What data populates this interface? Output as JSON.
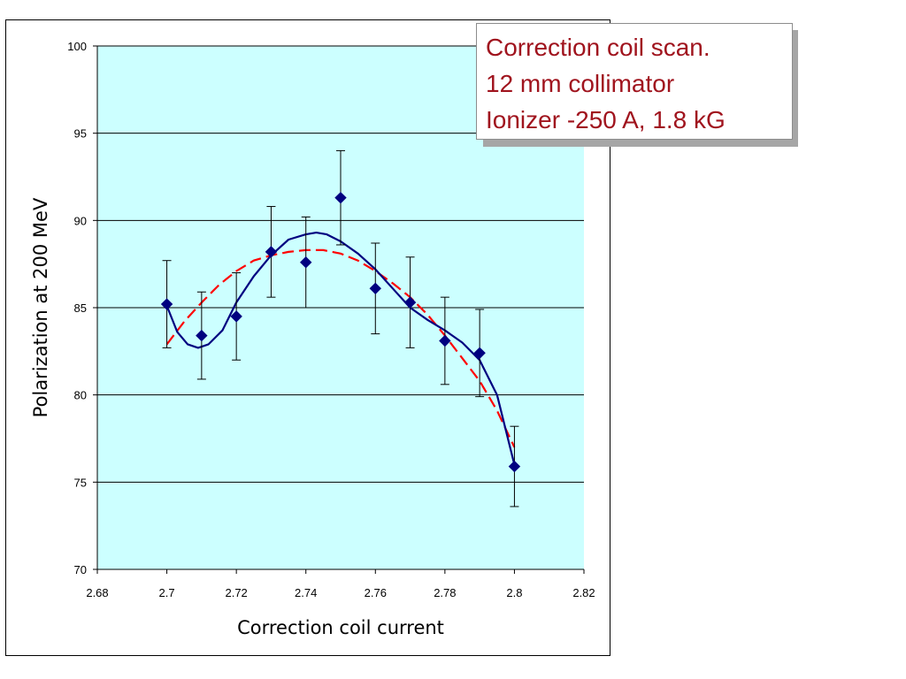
{
  "chart_data": {
    "type": "scatter",
    "xlabel": "Correction coil current",
    "ylabel": "Polarization at 200 MeV",
    "xlim": [
      2.68,
      2.82
    ],
    "ylim": [
      70,
      100
    ],
    "x_ticks": [
      "2.68",
      "2.7",
      "2.72",
      "2.74",
      "2.76",
      "2.78",
      "2.8",
      "2.82"
    ],
    "y_ticks": [
      "70",
      "75",
      "80",
      "85",
      "90",
      "95",
      "100"
    ],
    "grid": "horizontal",
    "plot_background": "#ccffff",
    "series": [
      {
        "type": "scatter",
        "marker": "diamond",
        "color": "#000080",
        "x": [
          2.7,
          2.71,
          2.72,
          2.73,
          2.74,
          2.75,
          2.76,
          2.77,
          2.78,
          2.79,
          2.8
        ],
        "y": [
          85.2,
          83.4,
          84.5,
          88.2,
          87.6,
          91.3,
          86.1,
          85.3,
          83.1,
          82.4,
          75.9
        ],
        "error": [
          2.5,
          2.5,
          2.5,
          2.6,
          2.6,
          2.7,
          2.6,
          2.6,
          2.5,
          2.5,
          2.3
        ]
      },
      {
        "type": "line",
        "style": "solid",
        "color": "#000080",
        "x": [
          2.7,
          2.703,
          2.706,
          2.709,
          2.712,
          2.716,
          2.72,
          2.725,
          2.73,
          2.735,
          2.74,
          2.743,
          2.746,
          2.75,
          2.755,
          2.76,
          2.765,
          2.77,
          2.775,
          2.78,
          2.785,
          2.79,
          2.795,
          2.8
        ],
        "y": [
          85.1,
          83.6,
          82.9,
          82.7,
          82.9,
          83.7,
          85.3,
          86.8,
          88.0,
          88.9,
          89.2,
          89.3,
          89.2,
          88.8,
          88.1,
          87.2,
          86.1,
          85.0,
          84.3,
          83.7,
          83.0,
          82.0,
          80.0,
          76.0
        ]
      },
      {
        "type": "line",
        "style": "dashed",
        "color": "#ff0000",
        "x": [
          2.7,
          2.705,
          2.71,
          2.715,
          2.72,
          2.725,
          2.73,
          2.735,
          2.74,
          2.745,
          2.75,
          2.755,
          2.76,
          2.765,
          2.77,
          2.775,
          2.78,
          2.785,
          2.79,
          2.795,
          2.8
        ],
        "y": [
          82.9,
          84.2,
          85.3,
          86.3,
          87.1,
          87.7,
          88.0,
          88.2,
          88.3,
          88.3,
          88.1,
          87.7,
          87.1,
          86.4,
          85.6,
          84.6,
          83.4,
          82.1,
          80.8,
          79.1,
          77.0
        ]
      }
    ]
  },
  "callout": {
    "lines": [
      "Correction coil scan.",
      "12 mm collimator",
      "Ionizer -250 A, 1.8 kG"
    ],
    "text_color": "#a0141e"
  }
}
